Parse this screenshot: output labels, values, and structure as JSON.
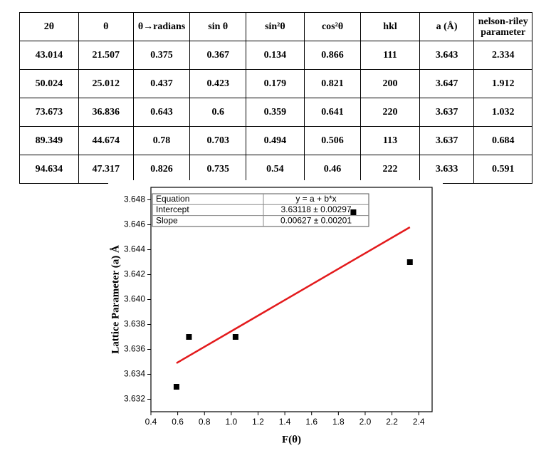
{
  "table": {
    "header": [
      "2θ",
      "θ",
      "θ→radians",
      "sin θ",
      "sin²θ",
      "cos²θ",
      "hkl",
      "a (Å)",
      "nelson-riley parameter"
    ],
    "rows": [
      [
        "43.014",
        "21.507",
        "0.375",
        "0.367",
        "0.134",
        "0.866",
        "111",
        "3.643",
        "2.334"
      ],
      [
        "50.024",
        "25.012",
        "0.437",
        "0.423",
        "0.179",
        "0.821",
        "200",
        "3.647",
        "1.912"
      ],
      [
        "73.673",
        "36.836",
        "0.643",
        "0.6",
        "0.359",
        "0.641",
        "220",
        "3.637",
        "1.032"
      ],
      [
        "89.349",
        "44.674",
        "0.78",
        "0.703",
        "0.494",
        "0.506",
        "113",
        "3.637",
        "0.684"
      ],
      [
        "94.634",
        "47.317",
        "0.826",
        "0.735",
        "0.54",
        "0.46",
        "222",
        "3.633",
        "0.591"
      ]
    ]
  },
  "chart_data": {
    "type": "scatter",
    "xlabel": "F(θ)",
    "ylabel": "Lattice Parameter (a) Å",
    "series": [
      {
        "type": "scatter",
        "color": "#000000",
        "x": [
          2.334,
          1.912,
          1.032,
          0.684,
          0.591
        ],
        "values": [
          3.643,
          3.647,
          3.637,
          3.637,
          3.633
        ]
      },
      {
        "type": "line",
        "color": "#e31a1c",
        "x": [
          0.591,
          2.334
        ],
        "values": [
          3.6349,
          3.6458
        ]
      }
    ],
    "xlim": [
      0.4,
      2.5
    ],
    "ylim": [
      3.631,
      3.649
    ],
    "xticks": [
      0.4,
      0.6,
      0.8,
      {
        "value": 1,
        "label": "1.0"
      },
      1.2,
      1.4,
      1.6,
      1.8,
      {
        "value": 2,
        "label": "2.0"
      },
      2.2,
      2.4
    ],
    "yticks": [
      3.632,
      3.634,
      3.636,
      3.638,
      {
        "value": 3.64,
        "label": "3.640"
      },
      3.642,
      3.644,
      3.646,
      3.648
    ],
    "fit_table": [
      [
        "Equation",
        "y = a + b*x"
      ],
      [
        "Intercept",
        "3.63118 ± 0.00297"
      ],
      [
        "Slope",
        "0.00627 ± 0.00201"
      ]
    ]
  }
}
